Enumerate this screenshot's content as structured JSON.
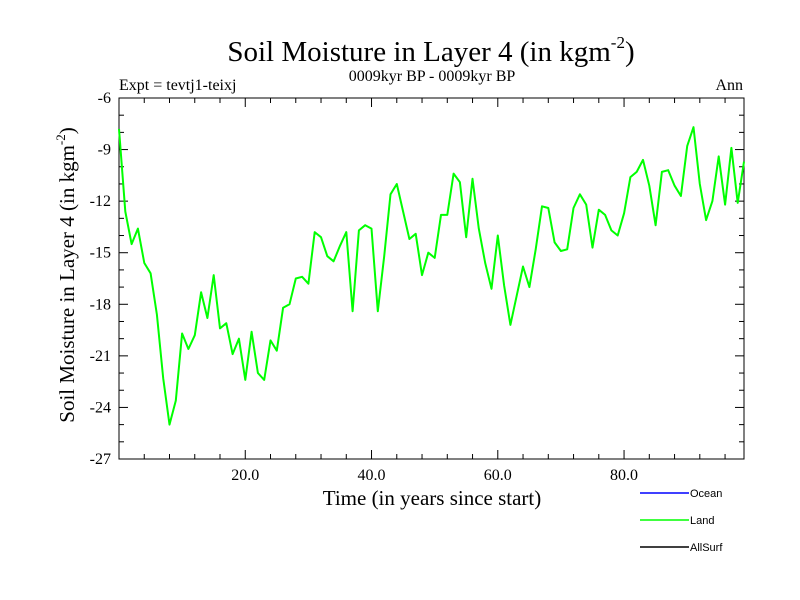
{
  "chart_data": {
    "type": "line",
    "title_main": "Soil Moisture in Layer 4 (in kgm",
    "title_sup": "-2",
    "title_close": ")",
    "subtitle_center": "0009kyr BP - 0009kyr BP",
    "subtitle_left": "Expt = tevtj1-teixj",
    "subtitle_right": "Ann",
    "xlabel": "Time (in years since start)",
    "ylabel_main": "Soil Moisture in Layer 4 (in kgm",
    "ylabel_sup": "-2",
    "ylabel_close": ")",
    "xlim": [
      0,
      99
    ],
    "ylim": [
      -27,
      -6
    ],
    "x_ticks": [
      20,
      40,
      60,
      80
    ],
    "x_tick_labels": [
      "20.0",
      "40.0",
      "60.0",
      "80.0"
    ],
    "y_ticks": [
      -6,
      -9,
      -12,
      -15,
      -18,
      -21,
      -24,
      -27
    ],
    "y_tick_labels": [
      "-6",
      "-9",
      "-12",
      "-15",
      "-18",
      "-21",
      "-24",
      "-27"
    ],
    "legend": [
      {
        "name": "Ocean",
        "color": "#0000ff"
      },
      {
        "name": "Land",
        "color": "#00ff00"
      },
      {
        "name": "AllSurf",
        "color": "#000000"
      }
    ],
    "series": [
      {
        "name": "Land",
        "color": "#00ff00",
        "x_start": 0,
        "x_step": 1,
        "values": [
          -7.8,
          -12.6,
          -14.5,
          -13.6,
          -15.6,
          -16.2,
          -18.6,
          -22.3,
          -25.0,
          -23.6,
          -19.7,
          -20.6,
          -19.8,
          -17.3,
          -18.8,
          -16.3,
          -19.4,
          -19.1,
          -20.9,
          -20.0,
          -22.4,
          -19.6,
          -22.0,
          -22.4,
          -20.1,
          -20.7,
          -18.2,
          -18.0,
          -16.5,
          -16.4,
          -16.8,
          -13.8,
          -14.1,
          -15.2,
          -15.5,
          -14.6,
          -13.8,
          -18.4,
          -13.7,
          -13.4,
          -13.6,
          -18.4,
          -15.2,
          -11.6,
          -11.0,
          -12.6,
          -14.2,
          -13.9,
          -16.3,
          -15.0,
          -15.3,
          -12.8,
          -12.8,
          -10.4,
          -10.9,
          -14.1,
          -10.7,
          -13.6,
          -15.6,
          -17.1,
          -14.0,
          -16.9,
          -19.2,
          -17.5,
          -15.8,
          -17.0,
          -14.8,
          -12.3,
          -12.4,
          -14.4,
          -14.9,
          -14.8,
          -12.4,
          -11.6,
          -12.2,
          -14.7,
          -12.5,
          -12.8,
          -13.7,
          -14.0,
          -12.7,
          -10.6,
          -10.3,
          -9.6,
          -11.1,
          -13.4,
          -10.3,
          -10.2,
          -11.1,
          -11.7,
          -8.8,
          -7.7,
          -11.0,
          -13.1,
          -12.0,
          -9.4,
          -12.2,
          -8.9,
          -12.1,
          -9.7
        ]
      }
    ]
  }
}
